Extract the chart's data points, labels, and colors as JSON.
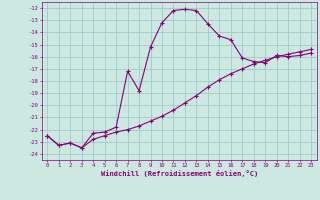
{
  "xlabel": "Windchill (Refroidissement éolien,°C)",
  "bg_color": "#cce8e0",
  "grid_color": "#99cccc",
  "line_color": "#880077",
  "xlim": [
    -0.5,
    23.5
  ],
  "ylim": [
    -24.5,
    -11.5
  ],
  "xticks": [
    0,
    1,
    2,
    3,
    4,
    5,
    6,
    7,
    8,
    9,
    10,
    11,
    12,
    13,
    14,
    15,
    16,
    17,
    18,
    19,
    20,
    21,
    22,
    23
  ],
  "yticks": [
    -24,
    -23,
    -22,
    -21,
    -20,
    -19,
    -18,
    -17,
    -16,
    -15,
    -14,
    -13,
    -12
  ],
  "series1_x": [
    0,
    1,
    2,
    3,
    4,
    5,
    6,
    7,
    8,
    9,
    10,
    11,
    12,
    13,
    14,
    15,
    16,
    17,
    18,
    19,
    20,
    21,
    22,
    23
  ],
  "series1_y": [
    -22.5,
    -23.3,
    -23.1,
    -23.5,
    -22.3,
    -22.2,
    -21.8,
    -17.2,
    -18.8,
    -15.2,
    -13.2,
    -12.2,
    -12.1,
    -12.2,
    -13.3,
    -14.3,
    -14.6,
    -16.1,
    -16.4,
    -16.5,
    -15.9,
    -16.0,
    -15.9,
    -15.7
  ],
  "series2_x": [
    0,
    1,
    2,
    3,
    4,
    5,
    6,
    7,
    8,
    9,
    10,
    11,
    12,
    13,
    14,
    15,
    16,
    17,
    18,
    19,
    20,
    21,
    22,
    23
  ],
  "series2_y": [
    -22.5,
    -23.3,
    -23.1,
    -23.5,
    -22.8,
    -22.5,
    -22.2,
    -22.0,
    -21.7,
    -21.3,
    -20.9,
    -20.4,
    -19.8,
    -19.2,
    -18.5,
    -17.9,
    -17.4,
    -17.0,
    -16.6,
    -16.3,
    -16.0,
    -15.8,
    -15.6,
    -15.4
  ]
}
